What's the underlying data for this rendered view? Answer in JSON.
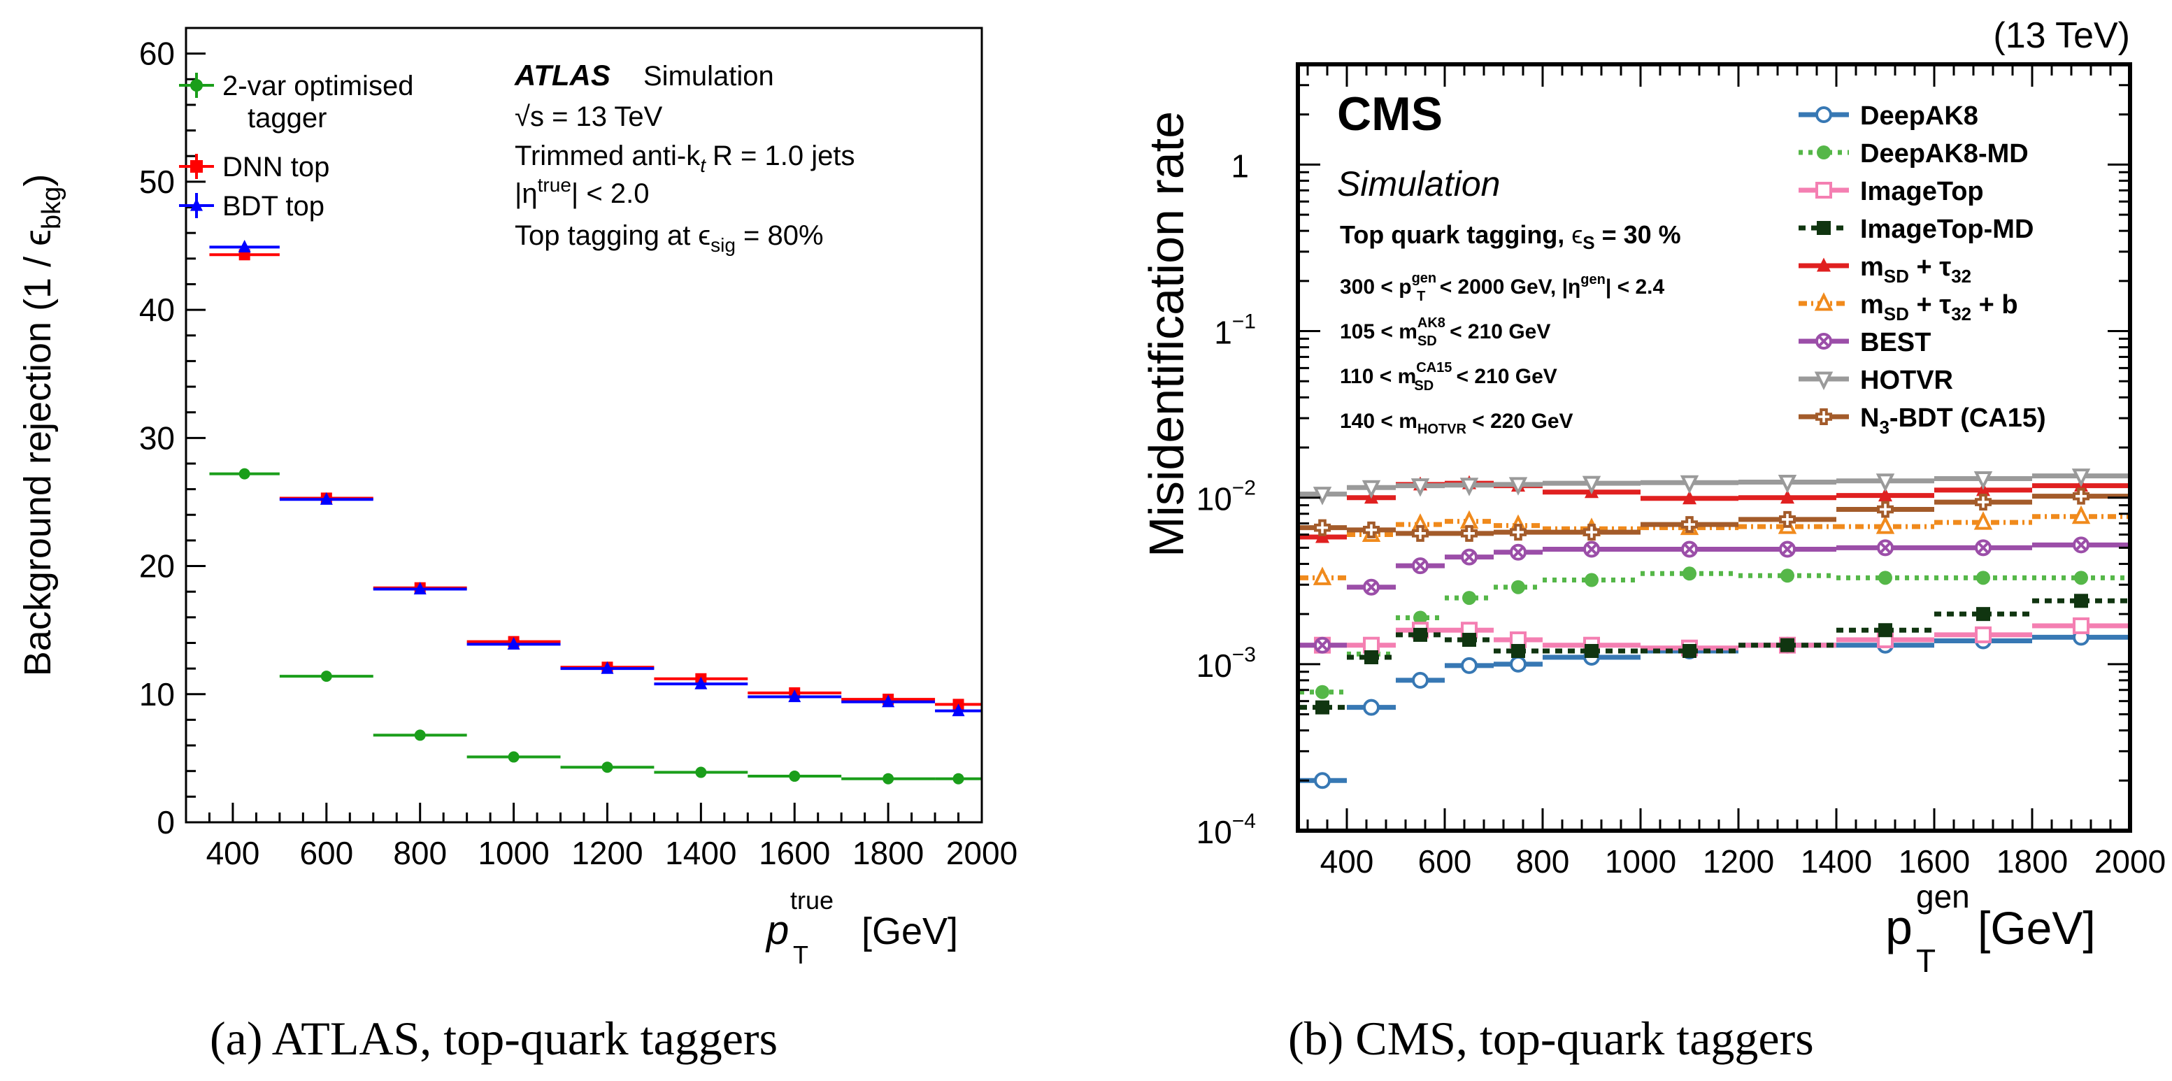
{
  "chart_data": [
    {
      "type": "scatter",
      "caption_letter": "(a)",
      "caption_text": " ATLAS, top-quark taggers",
      "title": "",
      "xlabel_sym": "p",
      "xlabel_sup": "true",
      "xlabel_sub": "T",
      "xlabel_unit": "[GeV]",
      "ylabel": "Background rejection (1 / ϵ",
      "ylabel_sub": "bkg",
      "ylabel_close": ")",
      "xlim": [
        300,
        2000
      ],
      "ylim": [
        0,
        62
      ],
      "xticks": [
        400,
        600,
        800,
        1000,
        1200,
        1400,
        1600,
        1800,
        2000
      ],
      "yticks": [
        0,
        10,
        20,
        30,
        40,
        50,
        60
      ],
      "bins": [
        [
          350,
          500
        ],
        [
          500,
          700
        ],
        [
          700,
          900
        ],
        [
          900,
          1100
        ],
        [
          1100,
          1300
        ],
        [
          1300,
          1500
        ],
        [
          1500,
          1700
        ],
        [
          1700,
          1900
        ],
        [
          1900,
          2000
        ]
      ],
      "experiment": "ATLAS",
      "tag": "Simulation",
      "annotations": [
        "√s = 13 TeV",
        "Trimmed anti-k",
        "t",
        "R = 1.0 jets",
        "|η",
        "true",
        "| < 2.0",
        "Top tagging at ϵ",
        "sig",
        " = 80%"
      ],
      "series": [
        {
          "name": "2-var optimised",
          "name2": "tagger",
          "color": "#1a9e1a",
          "marker": "circle",
          "values": [
            27.2,
            11.4,
            6.8,
            5.1,
            4.3,
            3.9,
            3.6,
            3.4,
            3.4
          ]
        },
        {
          "name": "DNN top",
          "color": "#ff0000",
          "marker": "square",
          "values": [
            44.3,
            25.3,
            18.3,
            14.1,
            12.1,
            11.2,
            10.1,
            9.6,
            9.2
          ]
        },
        {
          "name": "BDT top",
          "color": "#0000ff",
          "marker": "triangle",
          "values": [
            44.9,
            25.2,
            18.2,
            13.9,
            12.0,
            10.8,
            9.8,
            9.4,
            8.7
          ]
        }
      ]
    },
    {
      "type": "line",
      "caption_letter": "(b)",
      "caption_text": " CMS, top-quark taggers",
      "energy_label": "(13 TeV)",
      "experiment": "CMS",
      "tag": "Simulation",
      "xlabel": "p",
      "xlabel_sup": "gen",
      "xlabel_sub": "T",
      "xlabel_unit": "[GeV]",
      "ylabel": "Misidentification rate",
      "xlim": [
        300,
        2000
      ],
      "ylim": [
        0.0001,
        4
      ],
      "yscale": "log",
      "xticks": [
        400,
        600,
        800,
        1000,
        1200,
        1400,
        1600,
        1800,
        2000
      ],
      "yticks": [
        "10",
        "10",
        "10",
        "1"
      ],
      "ytick_exps": [
        "−4",
        "−3",
        "−2",
        "−1"
      ],
      "ytick_one": "1",
      "annotations": {
        "a1": "Top quark tagging, ",
        "a1b": "ϵ",
        "a1c": "S",
        "a1d": " = 30 %",
        "a2a": "300 < p",
        "a2b": "gen",
        "a2c": "T",
        "a2d": " < 2000 GeV, |η",
        "a2e": "gen",
        "a2f": "| < 2.4",
        "a3a": "105 < m",
        "a3b": "AK8",
        "a3c": "SD",
        "a3d": " < 210 GeV",
        "a4a": "110 < m",
        "a4b": "CA15",
        "a4c": "SD",
        "a4d": " < 210 GeV",
        "a5a": "140 < m",
        "a5b": "HOTVR",
        "a5c": " < 220 GeV"
      },
      "bins": [
        [
          300,
          400
        ],
        [
          400,
          500
        ],
        [
          500,
          600
        ],
        [
          600,
          700
        ],
        [
          700,
          800
        ],
        [
          800,
          1000
        ],
        [
          1000,
          1200
        ],
        [
          1200,
          1400
        ],
        [
          1400,
          1600
        ],
        [
          1600,
          1800
        ],
        [
          1800,
          2000
        ]
      ],
      "series": [
        {
          "name": "DeepAK8",
          "color": "#3778b4",
          "dash": "",
          "marker": "circle-open",
          "values": [
            0.0002,
            0.00055,
            0.0008,
            0.00098,
            0.001,
            0.0011,
            0.0012,
            0.0013,
            0.0013,
            0.00138,
            0.00145
          ]
        },
        {
          "name": "DeepAK8-MD",
          "color": "#55b748",
          "dash": "6,8",
          "marker": "circle",
          "values": [
            0.00068,
            0.00115,
            0.0019,
            0.0025,
            0.0029,
            0.0032,
            0.0035,
            0.0034,
            0.0033,
            0.0033,
            0.0033
          ]
        },
        {
          "name": "ImageTop",
          "color": "#f47fb2",
          "dash": "",
          "marker": "square-open",
          "values": [
            0.0013,
            0.0013,
            0.0016,
            0.0016,
            0.0014,
            0.0013,
            0.00125,
            0.0013,
            0.0014,
            0.0015,
            0.0017
          ]
        },
        {
          "name": "ImageTop-MD",
          "color": "#103510",
          "dash": "10,8",
          "marker": "square",
          "values": [
            0.00055,
            0.0011,
            0.0015,
            0.0014,
            0.0012,
            0.0012,
            0.0012,
            0.0013,
            0.0016,
            0.002,
            0.0024
          ]
        },
        {
          "name": "m",
          "sub1": "SD",
          "mid": " + τ",
          "sub2": "32",
          "tail": "",
          "color": "#e02020",
          "dash": "",
          "marker": "triangle",
          "values": [
            0.0058,
            0.01,
            0.012,
            0.0122,
            0.0118,
            0.0108,
            0.0099,
            0.01,
            0.0103,
            0.0111,
            0.0118
          ]
        },
        {
          "name": "m",
          "sub1": "SD",
          "mid": " + τ",
          "sub2": "32",
          "tail": " + b",
          "color": "#f08a1c",
          "dash": "12,6,3,6",
          "marker": "triangle-open",
          "values": [
            0.0033,
            0.006,
            0.0069,
            0.0072,
            0.0068,
            0.0065,
            0.0066,
            0.0067,
            0.0067,
            0.0071,
            0.0077
          ]
        },
        {
          "name": "BEST",
          "color": "#9b4ea8",
          "dash": "",
          "marker": "cross-circle",
          "values": [
            0.0013,
            0.0029,
            0.0039,
            0.0044,
            0.0047,
            0.0049,
            0.0049,
            0.0049,
            0.005,
            0.005,
            0.0052
          ]
        },
        {
          "name": "HOTVR",
          "color": "#9a9a9a",
          "dash": "",
          "marker": "triangle-down-open",
          "values": [
            0.0105,
            0.0115,
            0.0118,
            0.0119,
            0.012,
            0.0122,
            0.0123,
            0.0124,
            0.0126,
            0.013,
            0.0135
          ]
        },
        {
          "name": "N",
          "sub1": "3",
          "mid": "-BDT (CA15)",
          "sub2": "",
          "tail": "",
          "color": "#a35b2a",
          "dash": "",
          "marker": "plus-open",
          "values": [
            0.0066,
            0.0064,
            0.0061,
            0.0061,
            0.0062,
            0.0062,
            0.0069,
            0.0074,
            0.0085,
            0.0094,
            0.0102
          ]
        }
      ]
    }
  ]
}
